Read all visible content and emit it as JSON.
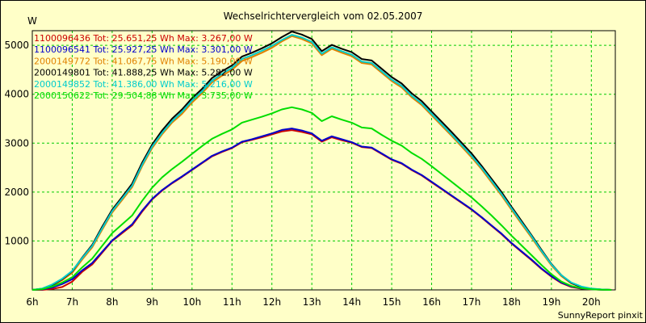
{
  "chart_data": {
    "type": "line",
    "title": "Wechselrichtervergleich vom 02.05.2007",
    "ylabel": "W",
    "xlabel": "",
    "x_tick_labels": [
      "6h",
      "7h",
      "8h",
      "9h",
      "10h",
      "11h",
      "12h",
      "13h",
      "14h",
      "15h",
      "16h",
      "17h",
      "18h",
      "19h",
      "20h"
    ],
    "x_tick_values": [
      6,
      7,
      8,
      9,
      10,
      11,
      12,
      13,
      14,
      15,
      16,
      17,
      18,
      19,
      20
    ],
    "y_ticks": [
      1000,
      2000,
      3000,
      4000,
      5000
    ],
    "xlim": [
      6,
      20.6
    ],
    "ylim": [
      0,
      5300
    ],
    "grid": true,
    "legend_position": "top-left",
    "footer": "SunnyReport pinxit",
    "series": [
      {
        "name": "1100096436",
        "legend": "1100096436 Tot: 25.651,25 Wh Max: 3.267,00 W",
        "color": "#cc0000",
        "x": [
          6,
          6.25,
          6.5,
          6.75,
          7,
          7.25,
          7.5,
          7.75,
          8,
          8.25,
          8.5,
          8.75,
          9,
          9.25,
          9.5,
          9.75,
          10,
          10.25,
          10.5,
          10.75,
          11,
          11.25,
          11.5,
          11.75,
          12,
          12.25,
          12.5,
          12.75,
          13,
          13.25,
          13.5,
          13.75,
          14,
          14.25,
          14.5,
          14.75,
          15,
          15.25,
          15.5,
          15.75,
          16,
          16.25,
          16.5,
          16.75,
          17,
          17.25,
          17.5,
          17.75,
          18,
          18.25,
          18.5,
          18.75,
          19,
          19.25,
          19.5,
          19.75,
          20,
          20.25,
          20.5
        ],
        "y": [
          0,
          0,
          20,
          60,
          170,
          370,
          520,
          760,
          1000,
          1160,
          1320,
          1600,
          1850,
          2030,
          2180,
          2310,
          2450,
          2590,
          2730,
          2820,
          2900,
          3020,
          3070,
          3120,
          3180,
          3240,
          3267,
          3230,
          3180,
          3030,
          3120,
          3060,
          3010,
          2920,
          2900,
          2780,
          2660,
          2580,
          2450,
          2340,
          2200,
          2060,
          1920,
          1780,
          1640,
          1480,
          1310,
          1140,
          950,
          780,
          610,
          430,
          270,
          140,
          60,
          25,
          10,
          5,
          0
        ]
      },
      {
        "name": "1100096541",
        "legend": "1100096541 Tot: 25.927,25 Wh Max: 3.301,00 W",
        "color": "#0000cc",
        "x": [
          6,
          6.25,
          6.5,
          6.75,
          7,
          7.25,
          7.5,
          7.75,
          8,
          8.25,
          8.5,
          8.75,
          9,
          9.25,
          9.5,
          9.75,
          10,
          10.25,
          10.5,
          10.75,
          11,
          11.25,
          11.5,
          11.75,
          12,
          12.25,
          12.5,
          12.75,
          13,
          13.25,
          13.5,
          13.75,
          14,
          14.25,
          14.5,
          14.75,
          15,
          15.25,
          15.5,
          15.75,
          16,
          16.25,
          16.5,
          16.75,
          17,
          17.25,
          17.5,
          17.75,
          18,
          18.25,
          18.5,
          18.75,
          19,
          19.25,
          19.5,
          19.75,
          20,
          20.25,
          20.5
        ],
        "y": [
          0,
          10,
          50,
          120,
          220,
          400,
          550,
          780,
          1010,
          1180,
          1340,
          1620,
          1860,
          2040,
          2190,
          2320,
          2460,
          2600,
          2740,
          2830,
          2910,
          3030,
          3080,
          3140,
          3200,
          3270,
          3301,
          3260,
          3200,
          3050,
          3140,
          3080,
          3020,
          2930,
          2910,
          2790,
          2670,
          2590,
          2460,
          2350,
          2210,
          2070,
          1930,
          1790,
          1650,
          1490,
          1320,
          1150,
          960,
          790,
          620,
          440,
          280,
          150,
          70,
          30,
          12,
          5,
          0
        ]
      },
      {
        "name": "2000149772",
        "legend": "2000149772 Tot: 41.067,75 Wh Max: 5.190,00 W",
        "color": "#e08000",
        "x": [
          6,
          6.25,
          6.5,
          6.75,
          7,
          7.25,
          7.5,
          7.75,
          8,
          8.25,
          8.5,
          8.75,
          9,
          9.25,
          9.5,
          9.75,
          10,
          10.25,
          10.5,
          10.75,
          11,
          11.25,
          11.5,
          11.75,
          12,
          12.25,
          12.5,
          12.75,
          13,
          13.25,
          13.5,
          13.75,
          14,
          14.25,
          14.5,
          14.75,
          15,
          15.25,
          15.5,
          15.75,
          16,
          16.25,
          16.5,
          16.75,
          17,
          17.25,
          17.5,
          17.75,
          18,
          18.25,
          18.5,
          18.75,
          19,
          19.25,
          19.5,
          19.75,
          20,
          20.25,
          20.5
        ],
        "y": [
          0,
          20,
          90,
          200,
          350,
          620,
          870,
          1230,
          1580,
          1840,
          2100,
          2530,
          2900,
          3180,
          3420,
          3600,
          3830,
          4020,
          4240,
          4380,
          4500,
          4680,
          4760,
          4850,
          4950,
          5080,
          5190,
          5130,
          5040,
          4800,
          4930,
          4850,
          4780,
          4640,
          4610,
          4440,
          4270,
          4140,
          3940,
          3780,
          3570,
          3360,
          3150,
          2930,
          2710,
          2470,
          2200,
          1930,
          1640,
          1350,
          1070,
          780,
          500,
          280,
          130,
          55,
          20,
          8,
          0
        ]
      },
      {
        "name": "2000149801",
        "legend": "2000149801 Tot: 41.888,25 Wh Max: 5.282,00 W",
        "color": "#000000",
        "x": [
          6,
          6.25,
          6.5,
          6.75,
          7,
          7.25,
          7.5,
          7.75,
          8,
          8.25,
          8.5,
          8.75,
          9,
          9.25,
          9.5,
          9.75,
          10,
          10.25,
          10.5,
          10.75,
          11,
          11.25,
          11.5,
          11.75,
          12,
          12.25,
          12.5,
          12.75,
          13,
          13.25,
          13.5,
          13.75,
          14,
          14.25,
          14.5,
          14.75,
          15,
          15.25,
          15.5,
          15.75,
          16,
          16.25,
          16.5,
          16.75,
          17,
          17.25,
          17.5,
          17.75,
          18,
          18.25,
          18.5,
          18.75,
          19,
          19.25,
          19.5,
          19.75,
          20,
          20.25,
          20.5
        ],
        "y": [
          0,
          25,
          100,
          220,
          380,
          660,
          920,
          1290,
          1640,
          1900,
          2170,
          2600,
          2970,
          3260,
          3500,
          3690,
          3920,
          4110,
          4330,
          4470,
          4590,
          4770,
          4850,
          4940,
          5040,
          5170,
          5282,
          5220,
          5130,
          4880,
          5010,
          4930,
          4860,
          4720,
          4690,
          4520,
          4350,
          4220,
          4020,
          3860,
          3650,
          3440,
          3230,
          3010,
          2790,
          2540,
          2270,
          2000,
          1700,
          1410,
          1120,
          820,
          530,
          300,
          140,
          60,
          22,
          8,
          0
        ]
      },
      {
        "name": "2000149852",
        "legend": "2000149852 Tot: 41.386,00 Wh Max: 5.216,00 W",
        "color": "#00cccc",
        "x": [
          6,
          6.25,
          6.5,
          6.75,
          7,
          7.25,
          7.5,
          7.75,
          8,
          8.25,
          8.5,
          8.75,
          9,
          9.25,
          9.5,
          9.75,
          10,
          10.25,
          10.5,
          10.75,
          11,
          11.25,
          11.5,
          11.75,
          12,
          12.25,
          12.5,
          12.75,
          13,
          13.25,
          13.5,
          13.75,
          14,
          14.25,
          14.5,
          14.75,
          15,
          15.25,
          15.5,
          15.75,
          16,
          16.25,
          16.5,
          16.75,
          17,
          17.25,
          17.5,
          17.75,
          18,
          18.25,
          18.5,
          18.75,
          19,
          19.25,
          19.5,
          19.75,
          20,
          20.25,
          20.5
        ],
        "y": [
          0,
          30,
          110,
          230,
          390,
          650,
          900,
          1260,
          1610,
          1870,
          2130,
          2560,
          2930,
          3210,
          3450,
          3640,
          3870,
          4060,
          4280,
          4420,
          4540,
          4720,
          4800,
          4890,
          4990,
          5110,
          5216,
          5160,
          5070,
          4830,
          4960,
          4880,
          4810,
          4670,
          4640,
          4470,
          4300,
          4170,
          3970,
          3810,
          3600,
          3390,
          3180,
          2960,
          2740,
          2500,
          2230,
          1960,
          1670,
          1380,
          1100,
          800,
          520,
          300,
          150,
          70,
          28,
          10,
          0
        ]
      },
      {
        "name": "2000150622",
        "legend": "2000150622 Tot: 29.504,88 Wh Max: 3.735,00 W",
        "color": "#00dd00",
        "x": [
          6,
          6.25,
          6.5,
          6.75,
          7,
          7.25,
          7.5,
          7.75,
          8,
          8.25,
          8.5,
          8.75,
          9,
          9.25,
          9.5,
          9.75,
          10,
          10.25,
          10.5,
          10.75,
          11,
          11.25,
          11.5,
          11.75,
          12,
          12.25,
          12.5,
          12.75,
          13,
          13.25,
          13.5,
          13.75,
          14,
          14.25,
          14.5,
          14.75,
          15,
          15.25,
          15.5,
          15.75,
          16,
          16.25,
          16.5,
          16.75,
          17,
          17.25,
          17.5,
          17.75,
          18,
          18.25,
          18.5,
          18.75,
          19,
          19.25,
          19.5,
          19.75,
          20,
          20.25,
          20.5
        ],
        "y": [
          0,
          15,
          70,
          150,
          260,
          460,
          640,
          900,
          1160,
          1340,
          1520,
          1820,
          2090,
          2300,
          2470,
          2620,
          2780,
          2940,
          3090,
          3190,
          3280,
          3420,
          3480,
          3540,
          3610,
          3690,
          3735,
          3690,
          3620,
          3450,
          3550,
          3480,
          3420,
          3320,
          3300,
          3170,
          3050,
          2950,
          2800,
          2680,
          2530,
          2370,
          2210,
          2050,
          1890,
          1710,
          1520,
          1320,
          1110,
          910,
          710,
          510,
          320,
          170,
          80,
          35,
          14,
          5,
          0
        ]
      }
    ]
  }
}
